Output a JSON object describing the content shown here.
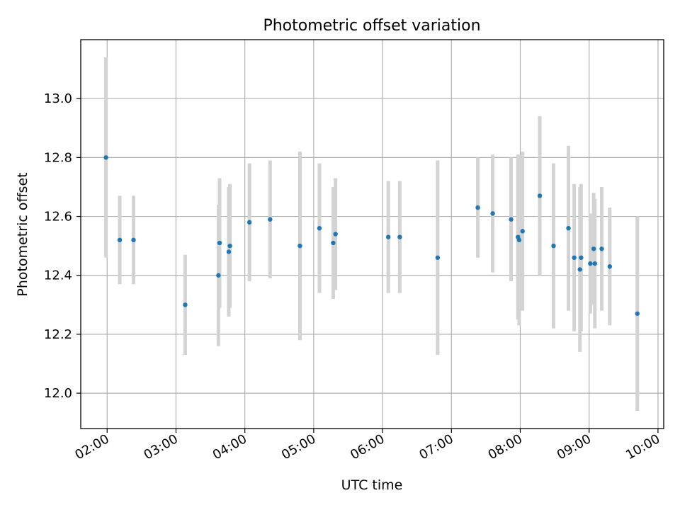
{
  "chart_data": {
    "type": "scatter",
    "title": "Photometric offset variation",
    "xlabel": "UTC time",
    "ylabel": "Photometric offset",
    "x_ticks": [
      "02:00",
      "03:00",
      "04:00",
      "05:00",
      "06:00",
      "07:00",
      "08:00",
      "09:00",
      "10:00"
    ],
    "y_ticks": [
      "12.0",
      "12.2",
      "12.4",
      "12.6",
      "12.8",
      "13.0"
    ],
    "xlim": [
      "01:37",
      "10:05"
    ],
    "ylim": [
      11.88,
      13.2
    ],
    "grid": true,
    "colors": {
      "marker": "#1f77b4",
      "errorbar": "#d3d3d3",
      "grid": "#b0b0b0"
    },
    "points": [
      {
        "x": "01:59",
        "y": 12.8,
        "err": 0.34
      },
      {
        "x": "02:11",
        "y": 12.52,
        "err": 0.15
      },
      {
        "x": "02:23",
        "y": 12.52,
        "err": 0.15
      },
      {
        "x": "03:08",
        "y": 12.3,
        "err": 0.17
      },
      {
        "x": "03:37",
        "y": 12.4,
        "err": 0.24
      },
      {
        "x": "03:38",
        "y": 12.51,
        "err": 0.22
      },
      {
        "x": "03:46",
        "y": 12.48,
        "err": 0.22
      },
      {
        "x": "03:47",
        "y": 12.5,
        "err": 0.21
      },
      {
        "x": "04:04",
        "y": 12.58,
        "err": 0.2
      },
      {
        "x": "04:22",
        "y": 12.59,
        "err": 0.2
      },
      {
        "x": "04:48",
        "y": 12.5,
        "err": 0.32
      },
      {
        "x": "05:05",
        "y": 12.56,
        "err": 0.22
      },
      {
        "x": "05:17",
        "y": 12.51,
        "err": 0.19
      },
      {
        "x": "05:19",
        "y": 12.54,
        "err": 0.19
      },
      {
        "x": "06:05",
        "y": 12.53,
        "err": 0.19
      },
      {
        "x": "06:15",
        "y": 12.53,
        "err": 0.19
      },
      {
        "x": "06:48",
        "y": 12.46,
        "err": 0.33
      },
      {
        "x": "07:23",
        "y": 12.63,
        "err": 0.17
      },
      {
        "x": "07:36",
        "y": 12.61,
        "err": 0.2
      },
      {
        "x": "07:52",
        "y": 12.59,
        "err": 0.21
      },
      {
        "x": "07:58",
        "y": 12.53,
        "err": 0.28
      },
      {
        "x": "07:59",
        "y": 12.52,
        "err": 0.29
      },
      {
        "x": "08:02",
        "y": 12.55,
        "err": 0.27
      },
      {
        "x": "08:17",
        "y": 12.67,
        "err": 0.27
      },
      {
        "x": "08:29",
        "y": 12.5,
        "err": 0.28
      },
      {
        "x": "08:42",
        "y": 12.56,
        "err": 0.28
      },
      {
        "x": "08:47",
        "y": 12.46,
        "err": 0.25
      },
      {
        "x": "08:52",
        "y": 12.42,
        "err": 0.28
      },
      {
        "x": "08:53",
        "y": 12.46,
        "err": 0.25
      },
      {
        "x": "09:01",
        "y": 12.44,
        "err": 0.17
      },
      {
        "x": "09:04",
        "y": 12.49,
        "err": 0.19
      },
      {
        "x": "09:05",
        "y": 12.44,
        "err": 0.22
      },
      {
        "x": "09:11",
        "y": 12.49,
        "err": 0.21
      },
      {
        "x": "09:18",
        "y": 12.43,
        "err": 0.2
      },
      {
        "x": "09:42",
        "y": 12.27,
        "err": 0.33
      }
    ]
  }
}
